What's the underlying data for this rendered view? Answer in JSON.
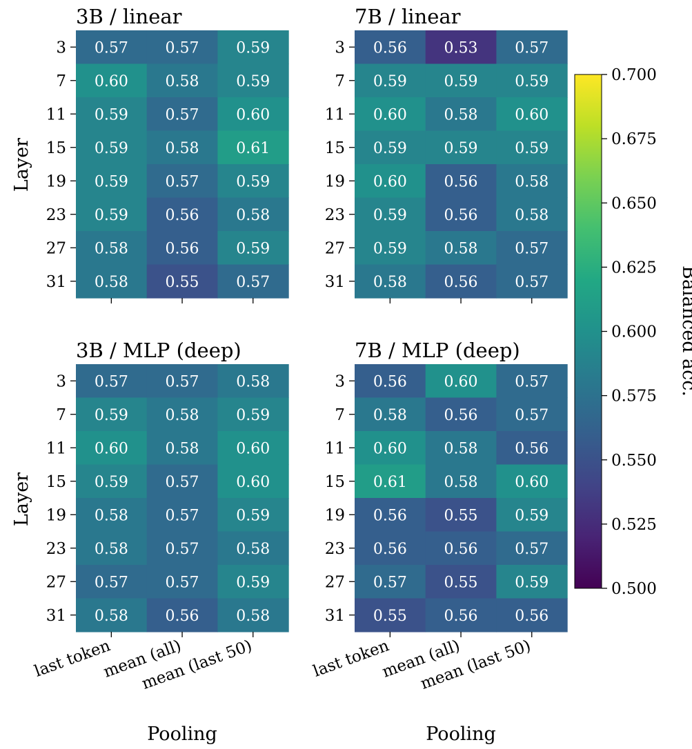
{
  "chart_data": {
    "type": "heatmap",
    "rows": [
      "3",
      "7",
      "11",
      "15",
      "19",
      "23",
      "27",
      "31"
    ],
    "columns": [
      "last token",
      "mean (all)",
      "mean (last 50)"
    ],
    "ylabel": "Layer",
    "xlabel": "Pooling",
    "panels": [
      {
        "title": "3B / linear",
        "values": [
          [
            0.57,
            0.57,
            0.59
          ],
          [
            0.6,
            0.58,
            0.59
          ],
          [
            0.59,
            0.57,
            0.6
          ],
          [
            0.59,
            0.58,
            0.61
          ],
          [
            0.59,
            0.57,
            0.59
          ],
          [
            0.59,
            0.56,
            0.58
          ],
          [
            0.58,
            0.56,
            0.59
          ],
          [
            0.58,
            0.55,
            0.57
          ]
        ]
      },
      {
        "title": "7B / linear",
        "values": [
          [
            0.56,
            0.53,
            0.57
          ],
          [
            0.59,
            0.59,
            0.59
          ],
          [
            0.6,
            0.58,
            0.6
          ],
          [
            0.59,
            0.59,
            0.59
          ],
          [
            0.6,
            0.56,
            0.58
          ],
          [
            0.59,
            0.56,
            0.58
          ],
          [
            0.59,
            0.58,
            0.57
          ],
          [
            0.58,
            0.56,
            0.57
          ]
        ]
      },
      {
        "title": "3B / MLP (deep)",
        "values": [
          [
            0.57,
            0.57,
            0.58
          ],
          [
            0.59,
            0.58,
            0.59
          ],
          [
            0.6,
            0.58,
            0.6
          ],
          [
            0.59,
            0.57,
            0.6
          ],
          [
            0.58,
            0.57,
            0.59
          ],
          [
            0.58,
            0.57,
            0.58
          ],
          [
            0.57,
            0.57,
            0.59
          ],
          [
            0.58,
            0.56,
            0.58
          ]
        ]
      },
      {
        "title": "7B / MLP (deep)",
        "values": [
          [
            0.56,
            0.6,
            0.57
          ],
          [
            0.58,
            0.56,
            0.57
          ],
          [
            0.6,
            0.58,
            0.56
          ],
          [
            0.61,
            0.58,
            0.6
          ],
          [
            0.56,
            0.55,
            0.59
          ],
          [
            0.56,
            0.56,
            0.57
          ],
          [
            0.57,
            0.55,
            0.59
          ],
          [
            0.55,
            0.56,
            0.56
          ]
        ]
      }
    ],
    "colorbar": {
      "label": "Balanced acc.",
      "colormap": "viridis",
      "range": [
        0.5,
        0.7
      ],
      "ticks": [
        "0.500",
        "0.525",
        "0.550",
        "0.575",
        "0.600",
        "0.625",
        "0.650",
        "0.675",
        "0.700"
      ]
    }
  }
}
